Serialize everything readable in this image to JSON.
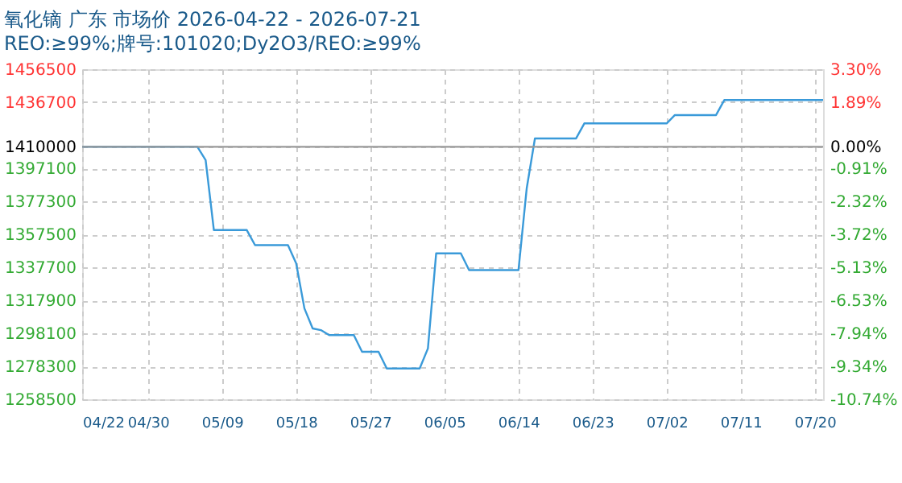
{
  "chart_data": {
    "type": "line",
    "title": "氧化镝 广东 市场价 2026-04-22 - 2026-07-21",
    "subtitle": "REO:≥99%;牌号:101020;Dy2O3/REO:≥99%",
    "x": [
      "2026-04-22",
      "2026-05-06",
      "2026-05-07",
      "2026-05-08",
      "2026-05-12",
      "2026-05-13",
      "2026-05-17",
      "2026-05-18",
      "2026-05-19",
      "2026-05-20",
      "2026-05-21",
      "2026-05-22",
      "2026-05-25",
      "2026-05-26",
      "2026-05-28",
      "2026-05-29",
      "2026-06-02",
      "2026-06-03",
      "2026-06-04",
      "2026-06-07",
      "2026-06-08",
      "2026-06-14",
      "2026-06-15",
      "2026-06-16",
      "2026-06-21",
      "2026-06-22",
      "2026-07-02",
      "2026-07-03",
      "2026-07-08",
      "2026-07-09",
      "2026-07-21"
    ],
    "series": [
      {
        "color": "#3a9ad9",
        "values": [
          1410000,
          1410000,
          1402000,
          1360000,
          1360000,
          1351000,
          1351000,
          1340000,
          1313000,
          1301000,
          1300000,
          1297000,
          1297000,
          1287000,
          1287000,
          1277000,
          1277000,
          1289000,
          1346000,
          1346000,
          1336000,
          1336000,
          1385000,
          1415000,
          1415000,
          1424000,
          1424000,
          1429000,
          1429000,
          1438000,
          1438000
        ]
      }
    ],
    "xlim": [
      "2026-04-22",
      "2026-07-21"
    ],
    "xticks": [
      {
        "value": "2026-04-22",
        "label": "04/22"
      },
      {
        "value": "2026-04-30",
        "label": "04/30"
      },
      {
        "value": "2026-05-09",
        "label": "05/09"
      },
      {
        "value": "2026-05-18",
        "label": "05/18"
      },
      {
        "value": "2026-05-27",
        "label": "05/27"
      },
      {
        "value": "2026-06-05",
        "label": "06/05"
      },
      {
        "value": "2026-06-14",
        "label": "06/14"
      },
      {
        "value": "2026-06-23",
        "label": "06/23"
      },
      {
        "value": "2026-07-02",
        "label": "07/02"
      },
      {
        "value": "2026-07-11",
        "label": "07/11"
      },
      {
        "value": "2026-07-20",
        "label": "07/20"
      }
    ],
    "ylim": [
      1258500,
      1456500
    ],
    "yticks": [
      1258500,
      1278300,
      1298100,
      1317900,
      1337700,
      1357500,
      1377300,
      1397100,
      1410000,
      1436700,
      1456500
    ],
    "y2lim": [
      -10.74,
      3.3
    ],
    "y2ticks": [
      {
        "value": -10.74,
        "label": "-10.74%"
      },
      {
        "value": -9.34,
        "label": "-9.34%"
      },
      {
        "value": -7.94,
        "label": "-7.94%"
      },
      {
        "value": -6.53,
        "label": "-6.53%"
      },
      {
        "value": -5.13,
        "label": "-5.13%"
      },
      {
        "value": -3.72,
        "label": "-3.72%"
      },
      {
        "value": -2.32,
        "label": "-2.32%"
      },
      {
        "value": -0.91,
        "label": "-0.91%"
      },
      {
        "value": 0,
        "label": "0.00%"
      },
      {
        "value": 1.89,
        "label": "1.89%"
      },
      {
        "value": 3.3,
        "label": "3.30%"
      }
    ],
    "ref_lines": [
      {
        "axis": "y2",
        "value": 0,
        "color": "#999999",
        "line_style": "solid"
      }
    ],
    "grid": true,
    "marker": "none",
    "line_style": "solid"
  }
}
